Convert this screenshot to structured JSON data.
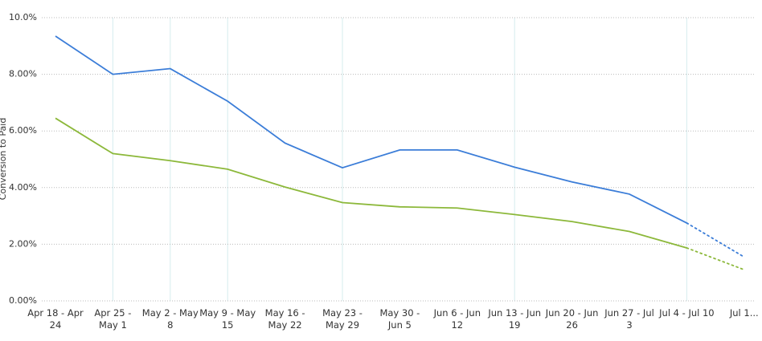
{
  "chart_data": {
    "type": "line",
    "y_label": "Conversion to Paid",
    "categories": [
      "Apr 18 - Apr 24",
      "Apr 25 - May 1",
      "May 2 - May 8",
      "May 9 - May 15",
      "May 16 - May 22",
      "May 23 - May 29",
      "May 30 - Jun 5",
      "Jun 6 - Jun 12",
      "Jun 13 - Jun 19",
      "Jun 20 - Jun 26",
      "Jun 27 - Jul 3",
      "Jul 4 - Jul 10",
      "Jul 1..."
    ],
    "series": [
      {
        "color": "#3b7dd8",
        "values": [
          9.35,
          8.0,
          8.2,
          7.05,
          5.57,
          4.7,
          5.33,
          5.33,
          4.72,
          4.2,
          3.77,
          2.75,
          1.55
        ]
      },
      {
        "color": "#8cb83a",
        "values": [
          6.45,
          5.2,
          4.95,
          4.65,
          4.02,
          3.47,
          3.32,
          3.28,
          3.05,
          2.8,
          2.45,
          1.87,
          1.1
        ]
      }
    ],
    "last_period_dotted": true,
    "ylim": [
      0,
      10
    ],
    "yticks": [
      {
        "value": 0,
        "label": "0.00%"
      },
      {
        "value": 2,
        "label": "2.00%"
      },
      {
        "value": 4,
        "label": "4.00%"
      },
      {
        "value": 6,
        "label": "6.00%"
      },
      {
        "value": 8,
        "label": "8.00%"
      },
      {
        "value": 10,
        "label": "10.0%"
      }
    ],
    "grid": true
  }
}
